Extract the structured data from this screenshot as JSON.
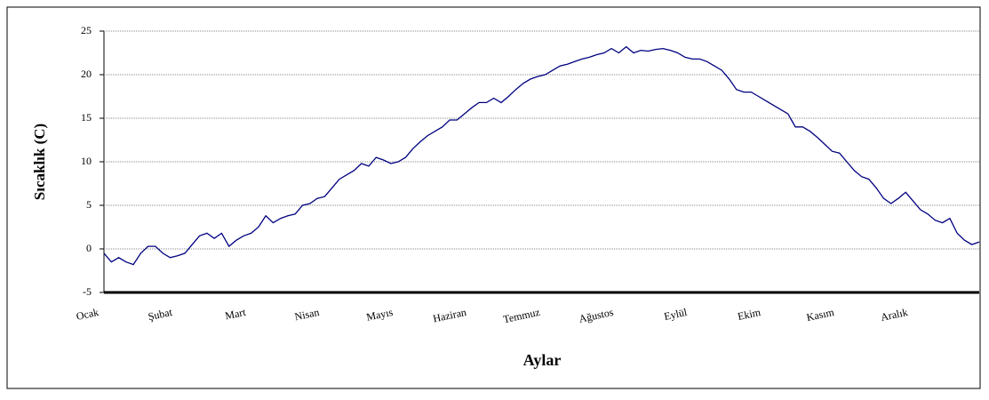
{
  "chart_data": {
    "type": "line",
    "y_label": "Sıcaklık (C)",
    "x_label": "Aylar",
    "categories": [
      "Ocak",
      null,
      null,
      null,
      null,
      null,
      null,
      null,
      null,
      null,
      "Şubat",
      null,
      null,
      null,
      null,
      null,
      null,
      null,
      null,
      null,
      "Mart",
      null,
      null,
      null,
      null,
      null,
      null,
      null,
      null,
      null,
      "Nisan",
      null,
      null,
      null,
      null,
      null,
      null,
      null,
      null,
      null,
      "Mayıs",
      null,
      null,
      null,
      null,
      null,
      null,
      null,
      null,
      null,
      "Haziran",
      null,
      null,
      null,
      null,
      null,
      null,
      null,
      null,
      null,
      "Temmuz",
      null,
      null,
      null,
      null,
      null,
      null,
      null,
      null,
      null,
      "Ağustos",
      null,
      null,
      null,
      null,
      null,
      null,
      null,
      null,
      null,
      "Eylül",
      null,
      null,
      null,
      null,
      null,
      null,
      null,
      null,
      null,
      "Ekim",
      null,
      null,
      null,
      null,
      null,
      null,
      null,
      null,
      null,
      "Kasım",
      null,
      null,
      null,
      null,
      null,
      null,
      null,
      null,
      null,
      "Aralık",
      null,
      null,
      null,
      null,
      null,
      null,
      null,
      null,
      null
    ],
    "series": [
      {
        "name": "Sıcaklık",
        "color": "#000080",
        "values": [
          -0.5,
          -1.5,
          -1,
          -1.5,
          -1.8,
          -0.5,
          0.3,
          0.3,
          -0.5,
          -1,
          -0.8,
          -0.5,
          0.5,
          1.5,
          1.8,
          1.2,
          1.8,
          0.3,
          1,
          1.5,
          1.8,
          2.5,
          3.8,
          3,
          3.5,
          3.8,
          4,
          5,
          5.2,
          5.8,
          6,
          7,
          8,
          8.5,
          9,
          9.8,
          9.5,
          10.5,
          10.2,
          9.8,
          10,
          10.5,
          11.5,
          12.3,
          13,
          13.5,
          14,
          14.8,
          14.8,
          15.5,
          16.2,
          16.8,
          16.8,
          17.3,
          16.8,
          17.5,
          18.3,
          19,
          19.5,
          19.8,
          20,
          20.5,
          21,
          21.2,
          21.5,
          21.8,
          22,
          22.3,
          22.5,
          23,
          22.5,
          23.2,
          22.5,
          22.8,
          22.7,
          22.9,
          23,
          22.8,
          22.5,
          22,
          21.8,
          21.8,
          21.5,
          21,
          20.5,
          19.5,
          18.3,
          18,
          18,
          17.5,
          17,
          16.5,
          16,
          15.5,
          14,
          14,
          13.5,
          12.8,
          12,
          11.2,
          11,
          10,
          9,
          8.3,
          8,
          7,
          5.8,
          5.2,
          5.8,
          6.5,
          5.5,
          4.5,
          4,
          3.3,
          3,
          3.5,
          1.8,
          1,
          0.5,
          0.8
        ]
      }
    ],
    "ylim": [
      -5,
      25
    ],
    "yticks": [
      -5,
      0,
      5,
      10,
      15,
      20,
      25
    ],
    "grid": true
  }
}
